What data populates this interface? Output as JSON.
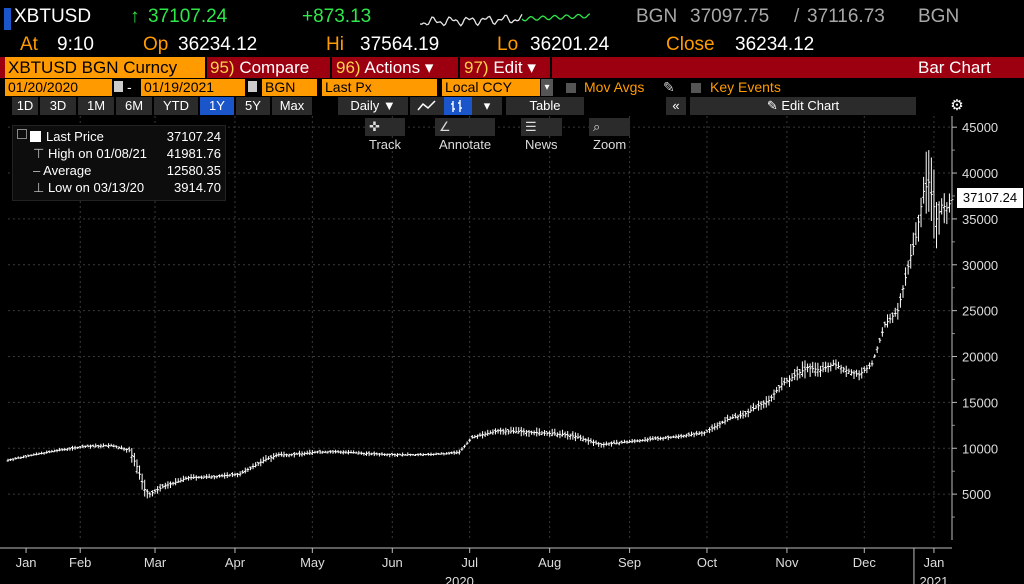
{
  "ticker": {
    "symbol": "XBTUSD",
    "last_arrow": "↑",
    "last": "37107.24",
    "change": "+873.13",
    "source": "BGN",
    "bid": "37097.75",
    "ask_sep": "/",
    "ask": "37116.73",
    "source2": "BGN"
  },
  "quote": {
    "at_label": "At",
    "at": "9:10",
    "op_label": "Op",
    "op": "36234.12",
    "hi_label": "Hi",
    "hi": "37564.19",
    "lo_label": "Lo",
    "lo": "36201.24",
    "close_label": "Close",
    "close": "36234.12"
  },
  "menu": {
    "security": "XBTUSD BGN Curncy",
    "compare_num": "95)",
    "compare": "Compare",
    "actions_num": "96)",
    "actions": "Actions",
    "edit_num": "97)",
    "edit": "Edit",
    "caret": "▾",
    "title": "Bar Chart"
  },
  "range": {
    "start": "01/20/2020",
    "dash": "-",
    "end": "01/19/2021",
    "source": "BGN",
    "field": "Last Px",
    "currency": "Local CCY",
    "mov_avgs": "Mov Avgs",
    "key_events": "Key Events"
  },
  "periods": [
    "1D",
    "3D",
    "1M",
    "6M",
    "YTD",
    "1Y",
    "5Y",
    "Max"
  ],
  "selected_period": "1Y",
  "controls": {
    "daily": "Daily ▼",
    "table": "Table",
    "collapse": "«",
    "edit_chart": "✎ Edit Chart",
    "settings": "⚙"
  },
  "chart_tools": {
    "track": "✜ Track",
    "annotate": "∠ Annotate",
    "news": "☰ News",
    "zoom": "⌕ Zoom"
  },
  "legend": {
    "last_price_label": "Last Price",
    "last_price": "37107.24",
    "high_label": "High on 01/08/21",
    "high": "41981.76",
    "average_label": "Average",
    "average": "12580.35",
    "low_label": "Low on 03/13/20",
    "low": "3914.70"
  },
  "price_tag": "37107.24",
  "colors": {
    "accent": "#ff9a00",
    "menu_bar": "#9c0010",
    "selected": "#1a55c9",
    "positive": "#2ee84a"
  },
  "chart_data": {
    "type": "bar",
    "ylim": [
      0,
      46000
    ],
    "yticks": [
      5000,
      10000,
      15000,
      20000,
      25000,
      30000,
      35000,
      40000,
      45000
    ],
    "xlim": [
      0,
      366
    ],
    "months": [
      {
        "label": "Jan",
        "day": 7
      },
      {
        "label": "Feb",
        "day": 28
      },
      {
        "label": "Mar",
        "day": 57
      },
      {
        "label": "Apr",
        "day": 88
      },
      {
        "label": "May",
        "day": 118
      },
      {
        "label": "Jun",
        "day": 149
      },
      {
        "label": "Jul",
        "day": 179
      },
      {
        "label": "Aug",
        "day": 210
      },
      {
        "label": "Sep",
        "day": 241
      },
      {
        "label": "Oct",
        "day": 271
      },
      {
        "label": "Nov",
        "day": 302
      },
      {
        "label": "Dec",
        "day": 332
      },
      {
        "label": "Jan",
        "day": 359
      }
    ],
    "years": [
      {
        "label": "2020",
        "day": 175
      },
      {
        "label": "2021",
        "day": 359
      }
    ],
    "series": [
      {
        "x": [
          0,
          10,
          20,
          30,
          40,
          47,
          50,
          53,
          55,
          60,
          70,
          80,
          90,
          100,
          105,
          110,
          120,
          130,
          140,
          150,
          160,
          170,
          175,
          180,
          190,
          200,
          210,
          215,
          220,
          225,
          230,
          240,
          250,
          260,
          270,
          280,
          285,
          290,
          295,
          300,
          310,
          315,
          320,
          325,
          330,
          335,
          340,
          345,
          350,
          352,
          355,
          357,
          360,
          362,
          364,
          366
        ],
        "close": [
          8700,
          9300,
          9800,
          10200,
          10300,
          9800,
          8000,
          5500,
          5000,
          5800,
          6800,
          6900,
          7200,
          8800,
          9300,
          9300,
          9600,
          9600,
          9400,
          9300,
          9300,
          9400,
          9600,
          11200,
          11900,
          11800,
          11600,
          11500,
          11300,
          10800,
          10400,
          10700,
          11000,
          11300,
          11700,
          13300,
          13600,
          14500,
          15200,
          17000,
          18800,
          18500,
          19200,
          18500,
          18000,
          19200,
          23500,
          25000,
          31000,
          33000,
          38000,
          39000,
          35000,
          36500,
          36200,
          37100
        ],
        "high": [
          9000,
          9500,
          10100,
          10500,
          10500,
          10200,
          9200,
          6200,
          5600,
          6400,
          7300,
          7300,
          7600,
          9500,
          9900,
          9700,
          10000,
          9900,
          9700,
          9600,
          9500,
          9600,
          10000,
          11700,
          12300,
          12400,
          12200,
          12000,
          11800,
          11200,
          10900,
          11000,
          11400,
          11600,
          12200,
          14000,
          14300,
          15300,
          16000,
          18000,
          19700,
          19500,
          19800,
          19400,
          19000,
          19700,
          24200,
          26500,
          33000,
          36000,
          41982,
          40500,
          39000,
          38500,
          38000,
          37564
        ],
        "low": [
          8500,
          9100,
          9600,
          9900,
          9900,
          9300,
          4800,
          3915,
          4800,
          5400,
          6500,
          6600,
          6900,
          8500,
          8900,
          9000,
          9300,
          9300,
          9100,
          9000,
          9100,
          9200,
          9400,
          10800,
          11500,
          11200,
          11000,
          10900,
          10700,
          10200,
          10100,
          10400,
          10700,
          11000,
          11400,
          12900,
          13200,
          14000,
          14700,
          16400,
          17500,
          17800,
          18400,
          17900,
          17600,
          18800,
          22600,
          24500,
          30000,
          32000,
          35000,
          32000,
          30500,
          34500,
          34000,
          36201
        ]
      }
    ]
  }
}
